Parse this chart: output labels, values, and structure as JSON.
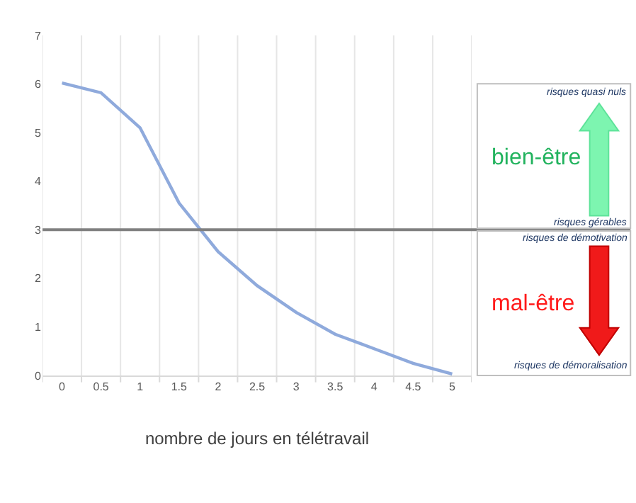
{
  "chart_data": {
    "type": "line",
    "xlabel": "nombre de jours en télétravail",
    "categories": [
      "0",
      "0.5",
      "1",
      "1.5",
      "2",
      "2.5",
      "3",
      "3.5",
      "4",
      "4.5",
      "5"
    ],
    "series": [
      {
        "color": "#8faadc",
        "values": [
          6.02,
          5.82,
          5.1,
          3.55,
          2.55,
          1.85,
          1.3,
          0.85,
          0.55,
          0.25,
          0.03
        ]
      }
    ],
    "ylim": [
      0,
      7
    ],
    "yticks": [
      0,
      1,
      2,
      3,
      4,
      5,
      6,
      7
    ],
    "grid": "x",
    "marker": "none",
    "line_style": "solid",
    "ref_lines": [
      {
        "axis": "y",
        "value": 3,
        "color": "#808080"
      }
    ],
    "annotations": [
      "risques quasi nuls",
      "bien-être",
      "risques gérables",
      "risques de démotivation",
      "mal-être",
      "risques de démoralisation"
    ]
  }
}
